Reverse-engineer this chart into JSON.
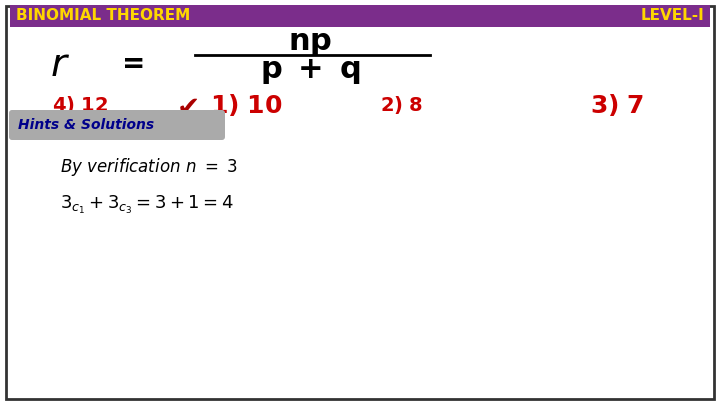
{
  "title_left": "BINOMIAL THEOREM",
  "title_right": "LEVEL-I",
  "header_bg": "#7B2D8B",
  "header_text_color": "#FFD700",
  "option_color": "#CC0000",
  "hints_label": "Hints & Solutions",
  "hints_bg": "#AAAAAA",
  "hints_text_color": "#00008B",
  "body_bg": "#FFFFFF",
  "border_color": "#333333",
  "line1": "By verification n = 3",
  "fig_width": 7.2,
  "fig_height": 4.05,
  "dpi": 100
}
